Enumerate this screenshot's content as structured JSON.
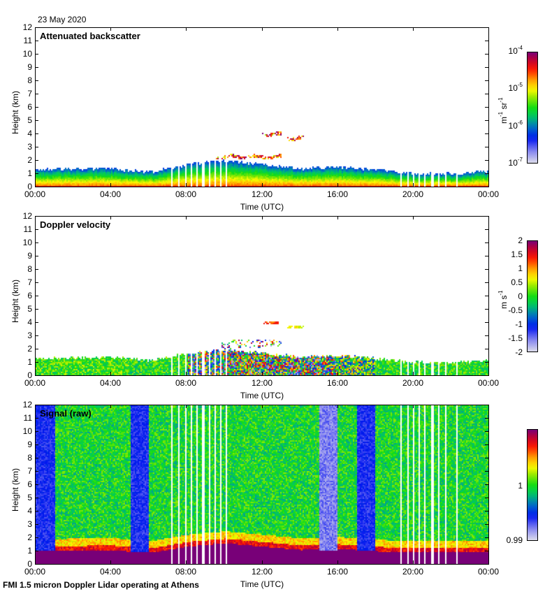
{
  "date": "23 May 2020",
  "footer": "FMI 1.5 micron Doppler Lidar operating at Athens",
  "chart_data": [
    {
      "type": "heatmap",
      "title": "Attenuated backscatter",
      "xlabel": "Time (UTC)",
      "ylabel": "Height (km)",
      "xticks": [
        "00:00",
        "04:00",
        "08:00",
        "12:00",
        "16:00",
        "20:00",
        "00:00"
      ],
      "yticks": [
        "0",
        "1",
        "2",
        "3",
        "4",
        "5",
        "6",
        "7",
        "8",
        "9",
        "10",
        "11",
        "12"
      ],
      "ylim": [
        0,
        12
      ],
      "xlim_hours": [
        0,
        24
      ],
      "colorbar": {
        "unit_base": "m",
        "unit_exp1": "-1",
        "unit_mid": " sr",
        "unit_exp2": "-1",
        "scale": "log",
        "range": [
          1e-07,
          0.0001
        ],
        "labels": [
          {
            "base": "10",
            "exp": "-4"
          },
          {
            "base": "10",
            "exp": "-5"
          },
          {
            "base": "10",
            "exp": "-6"
          },
          {
            "base": "10",
            "exp": "-7"
          }
        ]
      },
      "boundary_layer_top_km": {
        "hours": [
          0,
          4,
          6,
          8,
          10,
          12,
          14,
          16,
          18,
          20,
          22,
          24
        ],
        "values": [
          1.2,
          1.3,
          1.0,
          1.6,
          1.9,
          1.6,
          1.3,
          1.4,
          1.2,
          0.9,
          0.9,
          1.1
        ]
      },
      "cloud_layers": [
        {
          "start_h": 12.0,
          "end_h": 13.0,
          "height_km": 4.0
        },
        {
          "start_h": 13.3,
          "end_h": 14.2,
          "height_km": 3.7
        },
        {
          "start_h": 9.5,
          "end_h": 13.0,
          "height_km": 2.3
        }
      ]
    },
    {
      "type": "heatmap",
      "title": "Doppler velocity",
      "xlabel": "Time (UTC)",
      "ylabel": "Height (km)",
      "xticks": [
        "00:00",
        "04:00",
        "08:00",
        "12:00",
        "16:00",
        "20:00",
        "00:00"
      ],
      "yticks": [
        "0",
        "1",
        "2",
        "3",
        "4",
        "5",
        "6",
        "7",
        "8",
        "9",
        "10",
        "11",
        "12"
      ],
      "ylim": [
        0,
        12
      ],
      "colorbar": {
        "unit_base": "m s",
        "unit_exp1": "-1",
        "scale": "linear",
        "range": [
          -2,
          2
        ],
        "labels": [
          "2",
          "1.5",
          "1",
          "0.5",
          "0",
          "-0.5",
          "-1",
          "-1.5",
          "-2"
        ]
      }
    },
    {
      "type": "heatmap",
      "title": "Signal (raw)",
      "xlabel": "Time (UTC)",
      "ylabel": "Height (km)",
      "xticks": [
        "00:00",
        "04:00",
        "08:00",
        "12:00",
        "16:00",
        "20:00",
        "00:00"
      ],
      "yticks": [
        "0",
        "1",
        "2",
        "3",
        "4",
        "5",
        "6",
        "7",
        "8",
        "9",
        "10",
        "11",
        "12"
      ],
      "ylim": [
        0,
        12
      ],
      "colorbar": {
        "scale": "linear",
        "range": [
          0.99,
          1.01
        ],
        "labels": [
          "1",
          "0.99"
        ]
      },
      "low_signal_periods_h": [
        [
          0,
          1.0
        ],
        [
          5.0,
          6.0
        ],
        [
          17.0,
          18.0
        ]
      ],
      "no_data_periods_h": [
        [
          15.0,
          16.0
        ]
      ]
    }
  ]
}
